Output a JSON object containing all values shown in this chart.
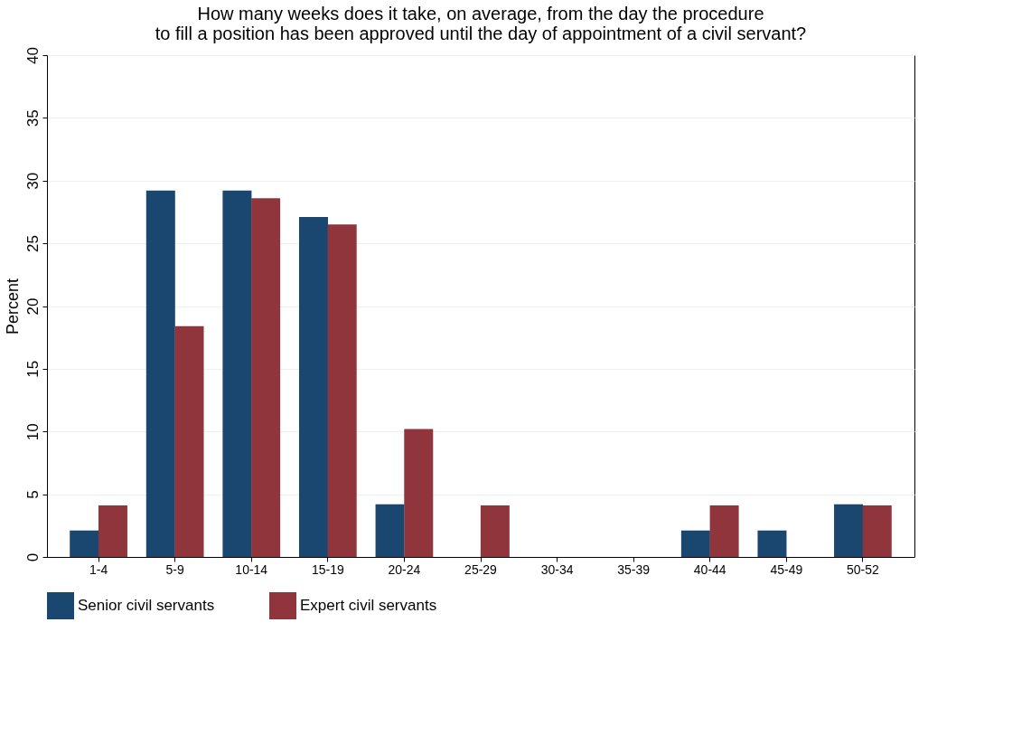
{
  "chart_data": {
    "type": "bar",
    "title": [
      "How many weeks does it take, on average, from the day the procedure",
      "to fill a position has been approved until the day of appointment of a civil servant?"
    ],
    "ylabel": "Percent",
    "categories": [
      "1-4",
      "5-9",
      "10-14",
      "15-19",
      "20-24",
      "25-29",
      "30-34",
      "35-39",
      "40-44",
      "45-49",
      "50-52"
    ],
    "series": [
      {
        "name": "Senior civil servants",
        "color": "#1a476f",
        "values": [
          2.1,
          29.2,
          29.2,
          27.1,
          4.2,
          0,
          0,
          0,
          2.1,
          2.1,
          4.2
        ]
      },
      {
        "name": "Expert civil servants",
        "color": "#90353b",
        "values": [
          4.1,
          18.4,
          28.6,
          26.5,
          10.2,
          4.1,
          0,
          0,
          4.1,
          0,
          4.1
        ]
      }
    ],
    "ylim": [
      0,
      40
    ],
    "yticks": [
      0,
      5,
      10,
      15,
      20,
      25,
      30,
      35,
      40
    ],
    "grid": "y",
    "legend": "bottom"
  }
}
